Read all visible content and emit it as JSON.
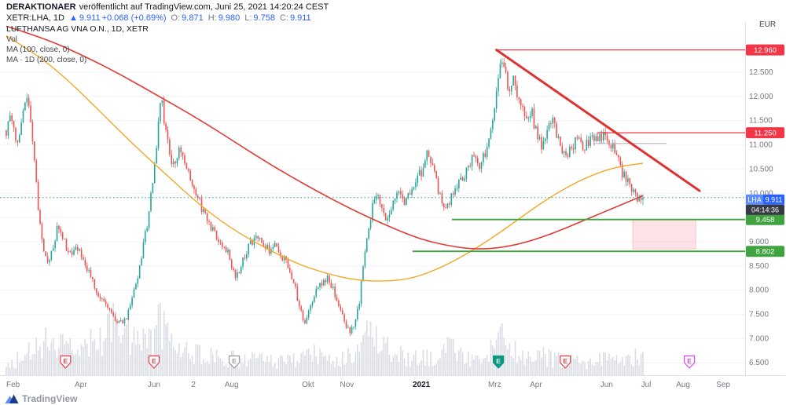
{
  "header": {
    "publisher": "DERAKTIONAER",
    "published_note": "veröffentlicht auf TradingView.com, Juni 25, 2021 14:20:24 CEST",
    "symbol_line": "XETR:LHA, 1D",
    "arrow": "▲",
    "last": "9.911",
    "change": "+0.068 (+0.69%)",
    "o_label": "O:",
    "o": "9.871",
    "h_label": "H:",
    "h": "9.980",
    "l_label": "L:",
    "l": "9.758",
    "c_label": "C:",
    "c": "9.911"
  },
  "legend": {
    "title": "LUFTHANSA AG VNA O.N., 1D, XETR",
    "vol": "Vol",
    "ma100": "MA (100, close, 0)",
    "ma200": "MA · 1D (200, close, 0)"
  },
  "axis": {
    "currency": "EUR",
    "symbol_badge": "LHA",
    "countdown": "04:14:36",
    "earnings_letter": "E"
  },
  "footer": {
    "logo_text": "TradingView"
  },
  "colors": {
    "up": "#26a69a",
    "down": "#ef5350",
    "volume": "#cfd3dc",
    "ma100": "#f5a623",
    "ma200": "#e53935",
    "trend": "#e03131",
    "level_red": "#f23645",
    "level_green": "#3fa33f",
    "zone_fill": "rgba(242,54,69,0.14)",
    "zone_stroke": "rgba(242,54,69,0.25)",
    "badge_sym": "#5b8cff",
    "badge_price": "#2962ff",
    "badge_countdown": "#363a45",
    "axis_text": "#787b86",
    "grid": "#f2f4f8",
    "border": "#e0e3eb",
    "gray_segment": "#b2b5be",
    "earnings": {
      "red": {
        "stroke": "#f23645",
        "fill": "#ffffff",
        "text": "#f23645"
      },
      "teal": {
        "stroke": "#089981",
        "fill": "#089981",
        "text": "#ffffff"
      },
      "gray": {
        "stroke": "#9598a1",
        "fill": "#ffffff",
        "text": "#9598a1"
      },
      "magenta": {
        "stroke": "#e040fb",
        "fill": "#ffffff",
        "text": "#e040fb"
      }
    }
  },
  "chart_data": {
    "type": "candlestick",
    "title": "LUFTHANSA AG VNA O.N., 1D, XETR",
    "symbol": "XETR:LHA",
    "timeframe": "1D",
    "ylabel": "EUR",
    "y_axis_range": [
      6.25,
      13.54
    ],
    "candle_count": 340,
    "last_candle": {
      "o": 9.871,
      "h": 9.98,
      "l": 9.758,
      "c": 9.911
    },
    "price_line": {
      "price": 9.911
    },
    "y_grid": [
      6.5,
      7,
      7.5,
      8,
      8.5,
      9,
      9.5,
      10,
      10.5,
      11,
      11.5,
      12,
      12.5
    ],
    "y_ticks": [
      12.5,
      12,
      11.5,
      11,
      10.5,
      10,
      9,
      8.5,
      8,
      7.5,
      7,
      6.5
    ],
    "x_ticks": [
      {
        "label": "Feb",
        "t": 0.0,
        "bold": false
      },
      {
        "label": "Apr",
        "t": 0.117,
        "bold": false
      },
      {
        "label": "Jun",
        "t": 0.232,
        "bold": false
      },
      {
        "label": "2",
        "t": 0.294,
        "bold": false
      },
      {
        "label": "Aug",
        "t": 0.354,
        "bold": false
      },
      {
        "label": "Okt",
        "t": 0.474,
        "bold": false
      },
      {
        "label": "Nov",
        "t": 0.535,
        "bold": false
      },
      {
        "label": "2021",
        "t": 0.652,
        "bold": true
      },
      {
        "label": "Mrz",
        "t": 0.767,
        "bold": false
      },
      {
        "label": "Apr",
        "t": 0.832,
        "bold": false
      },
      {
        "label": "Jun",
        "t": 0.943,
        "bold": false
      },
      {
        "label": "Jul",
        "t": 1.005,
        "bold": false
      },
      {
        "label": "Aug",
        "t": 1.063,
        "bold": false
      },
      {
        "label": "Sep",
        "t": 1.126,
        "bold": false
      }
    ],
    "close_path": [
      [
        0.0,
        11.3
      ],
      [
        0.008,
        11.55
      ],
      [
        0.016,
        11.05
      ],
      [
        0.024,
        11.45
      ],
      [
        0.03,
        11.9
      ],
      [
        0.034,
        12.2
      ],
      [
        0.038,
        11.4
      ],
      [
        0.044,
        10.7
      ],
      [
        0.05,
        9.7
      ],
      [
        0.056,
        9.0
      ],
      [
        0.064,
        8.55
      ],
      [
        0.072,
        8.75
      ],
      [
        0.08,
        9.25
      ],
      [
        0.09,
        9.05
      ],
      [
        0.1,
        8.7
      ],
      [
        0.11,
        8.85
      ],
      [
        0.117,
        8.75
      ],
      [
        0.128,
        8.45
      ],
      [
        0.14,
        8.05
      ],
      [
        0.152,
        7.8
      ],
      [
        0.163,
        7.6
      ],
      [
        0.172,
        7.4
      ],
      [
        0.182,
        7.28
      ],
      [
        0.192,
        7.55
      ],
      [
        0.202,
        8.0
      ],
      [
        0.212,
        8.7
      ],
      [
        0.222,
        9.4
      ],
      [
        0.23,
        10.2
      ],
      [
        0.237,
        11.1
      ],
      [
        0.2435,
        12.1
      ],
      [
        0.248,
        11.4
      ],
      [
        0.255,
        10.9
      ],
      [
        0.263,
        10.55
      ],
      [
        0.272,
        10.85
      ],
      [
        0.282,
        10.55
      ],
      [
        0.292,
        10.15
      ],
      [
        0.303,
        9.8
      ],
      [
        0.315,
        9.5
      ],
      [
        0.327,
        9.2
      ],
      [
        0.339,
        8.95
      ],
      [
        0.35,
        8.7
      ],
      [
        0.36,
        8.3
      ],
      [
        0.37,
        8.55
      ],
      [
        0.381,
        8.9
      ],
      [
        0.392,
        9.15
      ],
      [
        0.403,
        9.0
      ],
      [
        0.414,
        8.8
      ],
      [
        0.424,
        8.95
      ],
      [
        0.434,
        8.7
      ],
      [
        0.444,
        8.45
      ],
      [
        0.453,
        8.1
      ],
      [
        0.461,
        7.65
      ],
      [
        0.468,
        7.35
      ],
      [
        0.474,
        7.5
      ],
      [
        0.483,
        7.85
      ],
      [
        0.493,
        8.15
      ],
      [
        0.503,
        8.25
      ],
      [
        0.513,
        8.0
      ],
      [
        0.523,
        7.65
      ],
      [
        0.532,
        7.35
      ],
      [
        0.54,
        7.1
      ],
      [
        0.547,
        7.3
      ],
      [
        0.554,
        7.7
      ],
      [
        0.56,
        8.45
      ],
      [
        0.567,
        9.15
      ],
      [
        0.574,
        9.65
      ],
      [
        0.581,
        10.05
      ],
      [
        0.589,
        9.7
      ],
      [
        0.597,
        9.5
      ],
      [
        0.606,
        9.75
      ],
      [
        0.616,
        10.0
      ],
      [
        0.626,
        9.85
      ],
      [
        0.636,
        10.1
      ],
      [
        0.646,
        10.3
      ],
      [
        0.654,
        10.5
      ],
      [
        0.661,
        10.8
      ],
      [
        0.669,
        10.55
      ],
      [
        0.677,
        10.15
      ],
      [
        0.685,
        9.85
      ],
      [
        0.693,
        9.7
      ],
      [
        0.702,
        10.0
      ],
      [
        0.712,
        10.2
      ],
      [
        0.722,
        10.45
      ],
      [
        0.732,
        10.7
      ],
      [
        0.742,
        10.55
      ],
      [
        0.752,
        10.85
      ],
      [
        0.76,
        11.2
      ],
      [
        0.768,
        11.85
      ],
      [
        0.773,
        12.45
      ],
      [
        0.778,
        12.8
      ],
      [
        0.783,
        12.45
      ],
      [
        0.79,
        12.15
      ],
      [
        0.796,
        12.5
      ],
      [
        0.803,
        12.05
      ],
      [
        0.811,
        11.7
      ],
      [
        0.819,
        11.45
      ],
      [
        0.826,
        11.65
      ],
      [
        0.833,
        11.2
      ],
      [
        0.841,
        11.0
      ],
      [
        0.849,
        11.35
      ],
      [
        0.857,
        11.55
      ],
      [
        0.865,
        11.2
      ],
      [
        0.873,
        10.9
      ],
      [
        0.881,
        10.75
      ],
      [
        0.889,
        10.95
      ],
      [
        0.897,
        11.1
      ],
      [
        0.905,
        10.9
      ],
      [
        0.913,
        11.05
      ],
      [
        0.921,
        11.15
      ],
      [
        0.929,
        11.05
      ],
      [
        0.937,
        11.2
      ],
      [
        0.944,
        11.1
      ],
      [
        0.951,
        11.0
      ],
      [
        0.959,
        10.75
      ],
      [
        0.967,
        10.45
      ],
      [
        0.975,
        10.25
      ],
      [
        0.983,
        10.05
      ],
      [
        0.991,
        9.88
      ],
      [
        1.0,
        9.911
      ]
    ],
    "volume_profile": [
      [
        0.0,
        0.18
      ],
      [
        0.03,
        0.35
      ],
      [
        0.06,
        0.65
      ],
      [
        0.09,
        0.45
      ],
      [
        0.12,
        0.4
      ],
      [
        0.155,
        0.75
      ],
      [
        0.175,
        0.95
      ],
      [
        0.2,
        0.55
      ],
      [
        0.23,
        0.65
      ],
      [
        0.245,
        1.0
      ],
      [
        0.26,
        0.55
      ],
      [
        0.3,
        0.35
      ],
      [
        0.34,
        0.3
      ],
      [
        0.38,
        0.28
      ],
      [
        0.42,
        0.22
      ],
      [
        0.46,
        0.28
      ],
      [
        0.475,
        0.4
      ],
      [
        0.51,
        0.25
      ],
      [
        0.545,
        0.35
      ],
      [
        0.565,
        0.8
      ],
      [
        0.585,
        0.55
      ],
      [
        0.62,
        0.35
      ],
      [
        0.65,
        0.3
      ],
      [
        0.68,
        0.28
      ],
      [
        0.7,
        0.6
      ],
      [
        0.72,
        0.3
      ],
      [
        0.75,
        0.3
      ],
      [
        0.767,
        0.45
      ],
      [
        0.78,
        0.6
      ],
      [
        0.8,
        0.45
      ],
      [
        0.83,
        0.35
      ],
      [
        0.86,
        0.28
      ],
      [
        0.9,
        0.22
      ],
      [
        0.93,
        0.25
      ],
      [
        0.96,
        0.3
      ],
      [
        1.0,
        0.38
      ]
    ],
    "ma100": [
      [
        0,
        13.25
      ],
      [
        0.05,
        12.85
      ],
      [
        0.1,
        12.3
      ],
      [
        0.15,
        11.65
      ],
      [
        0.2,
        11.0
      ],
      [
        0.25,
        10.4
      ],
      [
        0.3,
        9.8
      ],
      [
        0.35,
        9.3
      ],
      [
        0.4,
        8.92
      ],
      [
        0.45,
        8.58
      ],
      [
        0.5,
        8.35
      ],
      [
        0.55,
        8.2
      ],
      [
        0.6,
        8.18
      ],
      [
        0.64,
        8.25
      ],
      [
        0.68,
        8.45
      ],
      [
        0.72,
        8.72
      ],
      [
        0.76,
        9.05
      ],
      [
        0.8,
        9.42
      ],
      [
        0.84,
        9.8
      ],
      [
        0.88,
        10.12
      ],
      [
        0.92,
        10.38
      ],
      [
        0.96,
        10.55
      ],
      [
        1.0,
        10.62
      ]
    ],
    "ma200": [
      [
        0,
        13.45
      ],
      [
        0.06,
        13.2
      ],
      [
        0.12,
        12.85
      ],
      [
        0.18,
        12.45
      ],
      [
        0.24,
        12.0
      ],
      [
        0.3,
        11.55
      ],
      [
        0.36,
        11.05
      ],
      [
        0.42,
        10.55
      ],
      [
        0.48,
        10.1
      ],
      [
        0.54,
        9.68
      ],
      [
        0.6,
        9.32
      ],
      [
        0.65,
        9.05
      ],
      [
        0.7,
        8.9
      ],
      [
        0.74,
        8.84
      ],
      [
        0.78,
        8.88
      ],
      [
        0.82,
        9.0
      ],
      [
        0.86,
        9.18
      ],
      [
        0.9,
        9.4
      ],
      [
        0.94,
        9.62
      ],
      [
        1.0,
        9.95
      ]
    ],
    "levels": [
      {
        "name": "resistance-line-12960",
        "price": 12.96,
        "from_t": 0.768,
        "color": "#f23645",
        "width": 1.2
      },
      {
        "name": "resistance-line-11250",
        "price": 11.25,
        "from_t": 0.928,
        "color": "#f23645",
        "width": 1.2
      },
      {
        "name": "support-line-9458",
        "price": 9.458,
        "from_t": 0.7,
        "color": "#3fa33f",
        "width": 1.8
      },
      {
        "name": "support-line-8802",
        "price": 8.802,
        "from_t": 0.638,
        "color": "#3fa33f",
        "width": 1.8
      }
    ],
    "trendline": {
      "t1": 0.77,
      "p1": 12.96,
      "t2": 1.089,
      "p2": 10.05
    },
    "zone": {
      "t1": 0.984,
      "t2": 1.083,
      "p1": 9.458,
      "p2": 8.85
    },
    "gray_segment": {
      "t1": 0.922,
      "t2": 1.037,
      "price": 11.03
    },
    "earnings": [
      {
        "t": 0.093,
        "style": "red"
      },
      {
        "t": 0.232,
        "style": "red"
      },
      {
        "t": 0.358,
        "style": "gray"
      },
      {
        "t": 0.773,
        "style": "teal"
      },
      {
        "t": 0.878,
        "style": "red"
      },
      {
        "t": 1.073,
        "style": "magenta"
      }
    ]
  }
}
